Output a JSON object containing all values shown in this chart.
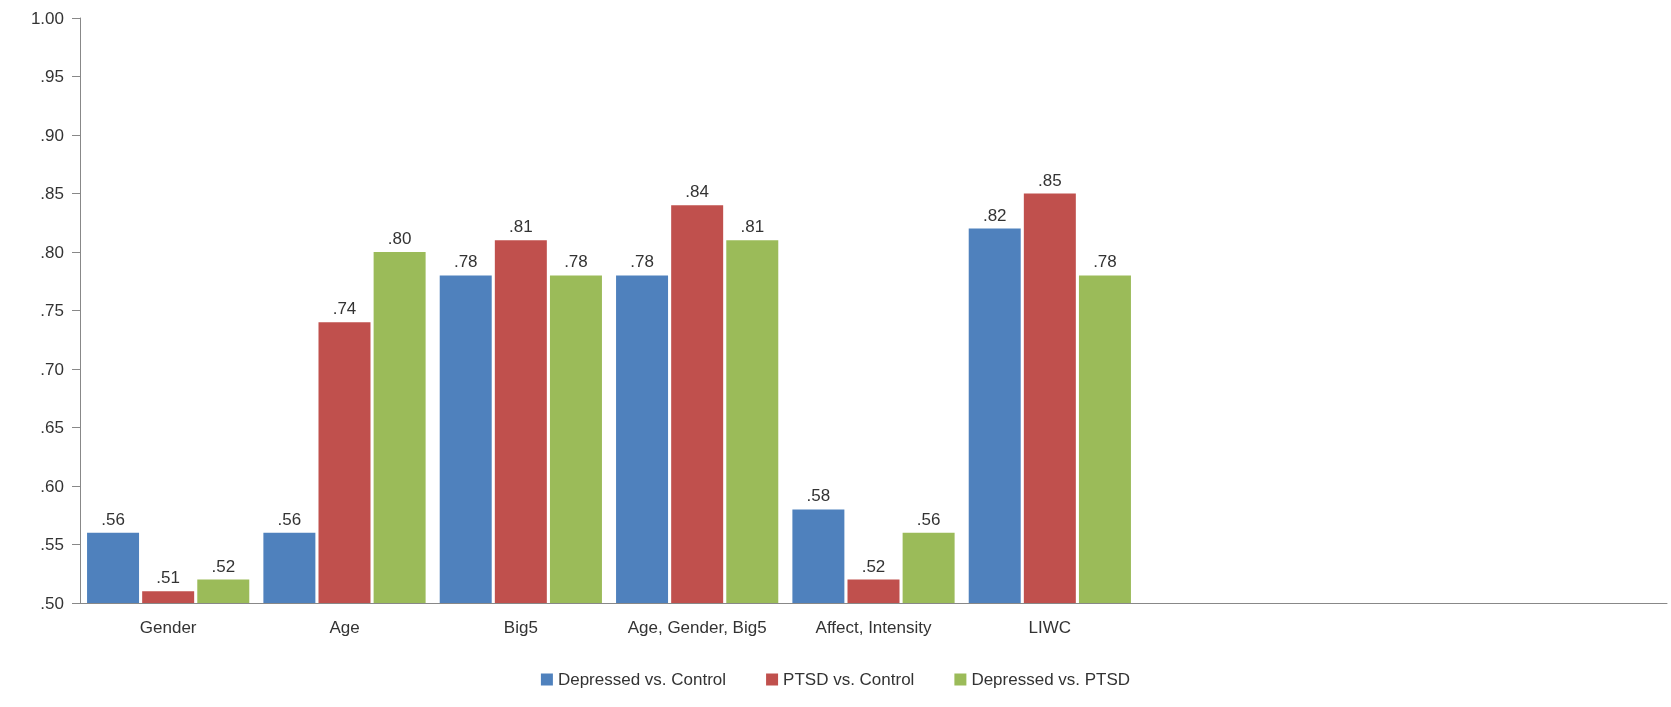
{
  "chart_data": {
    "type": "bar",
    "categories": [
      "Gender",
      "Age",
      "Big5",
      "Age, Gender, Big5",
      "Affect, Intensity",
      "LIWC",
      null,
      null,
      null
    ],
    "series": [
      {
        "name": "Depressed vs. Control",
        "color": "#4f81bd",
        "values": [
          0.56,
          0.56,
          0.78,
          0.78,
          0.58,
          0.82,
          null,
          null,
          null
        ],
        "value_labels": [
          ".56",
          ".56",
          ".78",
          ".78",
          ".58",
          ".82",
          null,
          null,
          null
        ]
      },
      {
        "name": "PTSD vs. Control",
        "color": "#c0504d",
        "values": [
          0.51,
          0.74,
          0.81,
          0.84,
          0.52,
          0.85,
          null,
          null,
          null
        ],
        "value_labels": [
          ".51",
          ".74",
          ".81",
          ".84",
          ".52",
          ".85",
          null,
          null,
          null
        ]
      },
      {
        "name": "Depressed vs. PTSD",
        "color": "#9bbb59",
        "values": [
          0.52,
          0.8,
          0.78,
          0.81,
          0.56,
          0.78,
          null,
          null,
          null
        ],
        "value_labels": [
          ".52",
          ".80",
          ".78",
          ".81",
          ".56",
          ".78",
          null,
          null,
          null
        ]
      }
    ],
    "ylim": [
      0.5,
      1.0
    ],
    "yticks": [
      {
        "value": 0.5,
        "label": ".50"
      },
      {
        "value": 0.55,
        "label": ".55"
      },
      {
        "value": 0.6,
        "label": ".60"
      },
      {
        "value": 0.65,
        "label": ".65"
      },
      {
        "value": 0.7,
        "label": ".70"
      },
      {
        "value": 0.75,
        "label": ".75"
      },
      {
        "value": 0.8,
        "label": ".80"
      },
      {
        "value": 0.85,
        "label": ".85"
      },
      {
        "value": 0.9,
        "label": ".90"
      },
      {
        "value": 0.95,
        "label": ".95"
      },
      {
        "value": 1.0,
        "label": "1.00"
      }
    ],
    "grid": false,
    "legend": "bottom"
  }
}
